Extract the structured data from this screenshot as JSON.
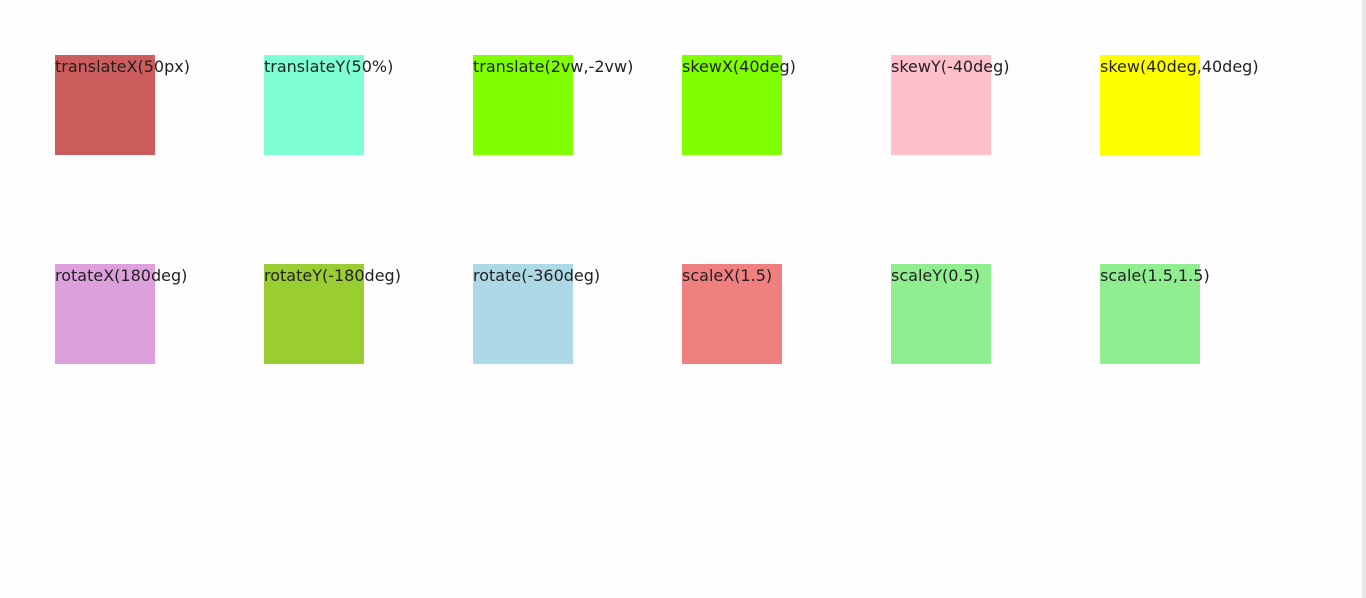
{
  "rows": [
    [
      {
        "label": "translateX(50px)",
        "color": "#cd5c5c"
      },
      {
        "label": "translateY(50%)",
        "color": "#7fffd4"
      },
      {
        "label": "translate(2vw,-2vw)",
        "color": "#7fff00"
      },
      {
        "label": "skewX(40deg)",
        "color": "#7fff00"
      },
      {
        "label": "skewY(-40deg)",
        "color": "#ffc0cb"
      },
      {
        "label": "skew(40deg,40deg)",
        "color": "#ffff00"
      }
    ],
    [
      {
        "label": "rotateX(180deg)",
        "color": "#dda0dd"
      },
      {
        "label": "rotateY(-180deg)",
        "color": "#9acd32"
      },
      {
        "label": "rotate(-360deg)",
        "color": "#add8e6"
      },
      {
        "label": "scaleX(1.5)",
        "color": "#f08080"
      },
      {
        "label": "scaleY(0.5)",
        "color": "#90ee90"
      },
      {
        "label": "scale(1.5,1.5)",
        "color": "#90ee90"
      }
    ]
  ]
}
